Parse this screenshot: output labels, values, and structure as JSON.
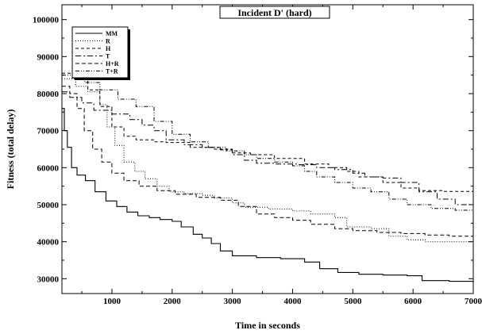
{
  "chart_data": {
    "type": "line",
    "title": "Incident D' (hard)",
    "xlabel": "Time in seconds",
    "ylabel": "Fitness (total delay)",
    "xlim": [
      170,
      7000
    ],
    "ylim": [
      26000,
      104000
    ],
    "x_ticks": [
      1000,
      2000,
      3000,
      4000,
      5000,
      6000,
      7000
    ],
    "y_ticks": [
      30000,
      40000,
      50000,
      60000,
      70000,
      80000,
      90000,
      100000
    ],
    "grid": false,
    "legend_position": "top-left",
    "series": [
      {
        "name": "MM",
        "points": [
          [
            170,
            76000
          ],
          [
            210,
            70000
          ],
          [
            260,
            65500
          ],
          [
            330,
            60000
          ],
          [
            420,
            58000
          ],
          [
            560,
            56500
          ],
          [
            720,
            53500
          ],
          [
            900,
            51000
          ],
          [
            1080,
            49500
          ],
          [
            1250,
            48000
          ],
          [
            1430,
            47000
          ],
          [
            1620,
            46500
          ],
          [
            1800,
            46000
          ],
          [
            2000,
            45500
          ],
          [
            2150,
            44000
          ],
          [
            2350,
            42000
          ],
          [
            2500,
            41000
          ],
          [
            2650,
            39500
          ],
          [
            2800,
            37500
          ],
          [
            3000,
            36200
          ],
          [
            3400,
            35700
          ],
          [
            3800,
            35400
          ],
          [
            4200,
            34500
          ],
          [
            4450,
            32700
          ],
          [
            4750,
            31700
          ],
          [
            5100,
            31200
          ],
          [
            5500,
            31000
          ],
          [
            5900,
            30800
          ],
          [
            6150,
            29500
          ],
          [
            6600,
            29300
          ],
          [
            7000,
            28900
          ]
        ]
      },
      {
        "name": "R",
        "points": [
          [
            170,
            84000
          ],
          [
            400,
            82000
          ],
          [
            600,
            80500
          ],
          [
            800,
            77000
          ],
          [
            920,
            71000
          ],
          [
            1050,
            66000
          ],
          [
            1200,
            61500
          ],
          [
            1380,
            59000
          ],
          [
            1550,
            57000
          ],
          [
            1750,
            55000
          ],
          [
            1950,
            53500
          ],
          [
            2200,
            53000
          ],
          [
            2500,
            52500
          ],
          [
            2700,
            51800
          ],
          [
            3000,
            50500
          ],
          [
            3200,
            49300
          ],
          [
            3600,
            48800
          ],
          [
            4000,
            48300
          ],
          [
            4300,
            47500
          ],
          [
            4700,
            46500
          ],
          [
            4900,
            44000
          ],
          [
            5300,
            43500
          ],
          [
            5600,
            41500
          ],
          [
            5900,
            40500
          ],
          [
            6200,
            40000
          ],
          [
            6600,
            40000
          ],
          [
            7000,
            40000
          ]
        ]
      },
      {
        "name": "H",
        "points": [
          [
            170,
            85500
          ],
          [
            400,
            84000
          ],
          [
            600,
            81000
          ],
          [
            800,
            76500
          ],
          [
            1000,
            71000
          ],
          [
            1200,
            68500
          ],
          [
            1400,
            67500
          ],
          [
            1700,
            67000
          ],
          [
            1900,
            66800
          ],
          [
            2300,
            65500
          ],
          [
            2700,
            65000
          ],
          [
            3000,
            64000
          ],
          [
            3300,
            63500
          ],
          [
            3700,
            62500
          ],
          [
            4200,
            61000
          ],
          [
            4600,
            60000
          ],
          [
            4900,
            59000
          ],
          [
            5100,
            57500
          ],
          [
            5500,
            56000
          ],
          [
            5800,
            54500
          ],
          [
            6100,
            53800
          ],
          [
            6500,
            53600
          ],
          [
            7000,
            53600
          ]
        ]
      },
      {
        "name": "T",
        "points": [
          [
            170,
            80500
          ],
          [
            300,
            79000
          ],
          [
            500,
            77500
          ],
          [
            700,
            75500
          ],
          [
            1000,
            74500
          ],
          [
            1300,
            73000
          ],
          [
            1500,
            71500
          ],
          [
            1700,
            70000
          ],
          [
            1900,
            67500
          ],
          [
            2200,
            66200
          ],
          [
            2500,
            65500
          ],
          [
            2800,
            64800
          ],
          [
            3000,
            63500
          ],
          [
            3200,
            62000
          ],
          [
            3400,
            61200
          ],
          [
            3700,
            61000
          ],
          [
            4100,
            60800
          ],
          [
            4400,
            60000
          ],
          [
            4700,
            59500
          ],
          [
            5000,
            58500
          ],
          [
            5200,
            57500
          ],
          [
            5500,
            57200
          ],
          [
            5800,
            56000
          ],
          [
            6100,
            53500
          ],
          [
            6400,
            51500
          ],
          [
            6700,
            50000
          ],
          [
            7000,
            49000
          ]
        ]
      },
      {
        "name": "H+R",
        "points": [
          [
            170,
            82000
          ],
          [
            300,
            80000
          ],
          [
            420,
            76000
          ],
          [
            540,
            70000
          ],
          [
            680,
            65000
          ],
          [
            830,
            61500
          ],
          [
            1000,
            58500
          ],
          [
            1200,
            56500
          ],
          [
            1450,
            55000
          ],
          [
            1750,
            53800
          ],
          [
            2050,
            52800
          ],
          [
            2400,
            52000
          ],
          [
            2800,
            51200
          ],
          [
            3100,
            49500
          ],
          [
            3400,
            47500
          ],
          [
            3700,
            46500
          ],
          [
            4000,
            45800
          ],
          [
            4300,
            44700
          ],
          [
            4700,
            43500
          ],
          [
            5000,
            43000
          ],
          [
            5400,
            42500
          ],
          [
            5800,
            42200
          ],
          [
            6200,
            41800
          ],
          [
            6600,
            41500
          ],
          [
            7000,
            41500
          ]
        ]
      },
      {
        "name": "T+R",
        "points": [
          [
            170,
            85000
          ],
          [
            350,
            84000
          ],
          [
            550,
            83000
          ],
          [
            800,
            81000
          ],
          [
            1100,
            78500
          ],
          [
            1400,
            76500
          ],
          [
            1700,
            72500
          ],
          [
            2000,
            69000
          ],
          [
            2300,
            67000
          ],
          [
            2600,
            65500
          ],
          [
            2900,
            64500
          ],
          [
            3200,
            63500
          ],
          [
            3400,
            62500
          ],
          [
            3700,
            61500
          ],
          [
            4000,
            60500
          ],
          [
            4200,
            59000
          ],
          [
            4400,
            57500
          ],
          [
            4700,
            56000
          ],
          [
            5000,
            54500
          ],
          [
            5300,
            53500
          ],
          [
            5600,
            51500
          ],
          [
            5900,
            50000
          ],
          [
            6300,
            49000
          ],
          [
            6700,
            48500
          ],
          [
            7000,
            48000
          ]
        ]
      }
    ]
  }
}
